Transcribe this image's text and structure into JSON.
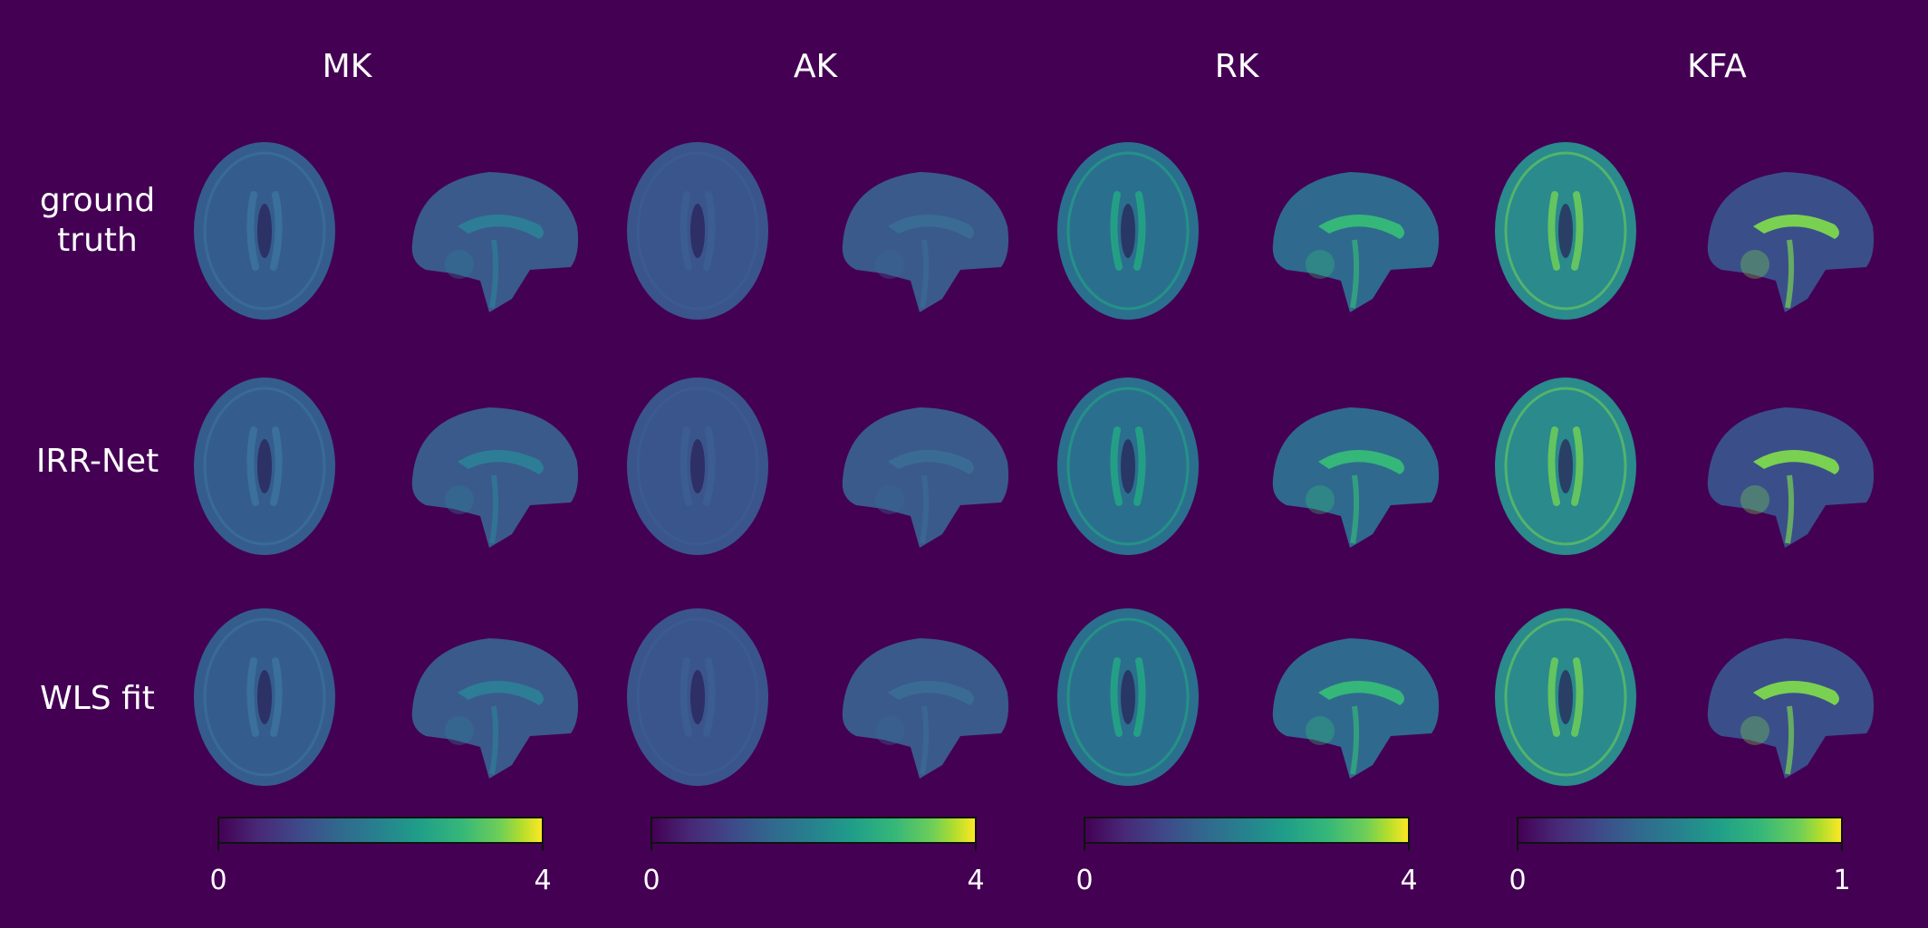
{
  "columns": [
    {
      "title": "MK",
      "cbar_min": "0",
      "cbar_max": "4",
      "axial": "#345d8d",
      "sagittal": "#3a5a8c",
      "axial_detail": "#3d73a0",
      "sagittal_detail": "#2d7d96"
    },
    {
      "title": "AK",
      "cbar_min": "0",
      "cbar_max": "4",
      "axial": "#3a558c",
      "sagittal": "#3a5a8c",
      "axial_detail": "#3c5f92",
      "sagittal_detail": "#3a6b95"
    },
    {
      "title": "RK",
      "cbar_min": "0",
      "cbar_max": "4",
      "axial": "#2b6f8e",
      "sagittal": "#2f6a8e",
      "axial_detail": "#22a884",
      "sagittal_detail": "#35b779"
    },
    {
      "title": "KFA",
      "cbar_min": "0",
      "cbar_max": "1",
      "axial": "#2a8a8c",
      "sagittal": "#3a4f8a",
      "axial_detail": "#6ece58",
      "sagittal_detail": "#7ad151"
    }
  ],
  "rows": [
    {
      "label_lines": [
        "ground",
        "truth"
      ]
    },
    {
      "label_lines": [
        "IRR-Net"
      ]
    },
    {
      "label_lines": [
        "WLS fit"
      ]
    }
  ],
  "background_color": "#440154",
  "colormap": "viridis"
}
